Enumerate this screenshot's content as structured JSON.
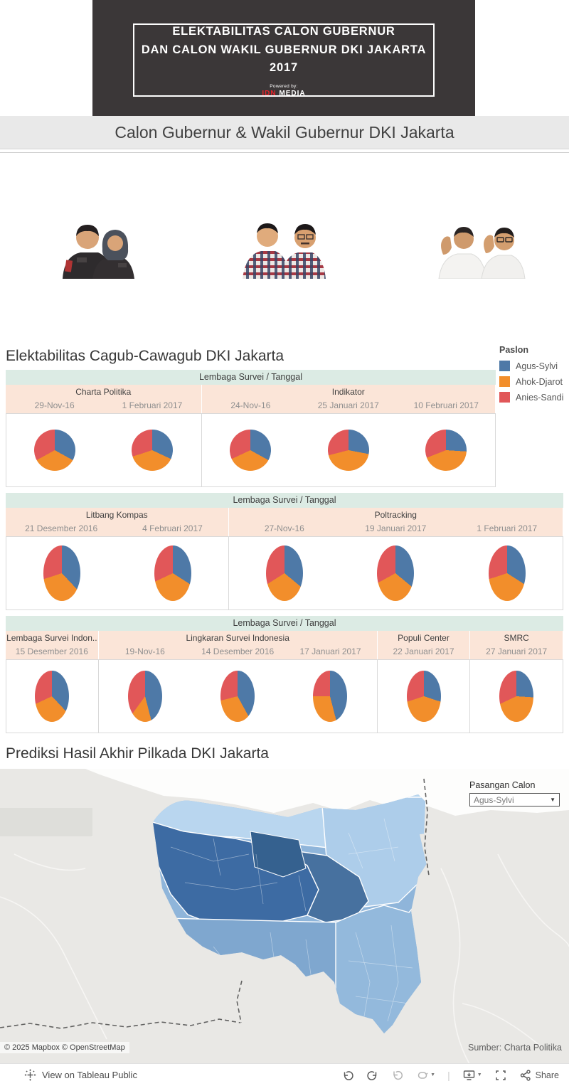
{
  "banner": {
    "title_line1": "ELEKTABILITAS CALON GUBERNUR",
    "title_line2": "DAN CALON WAKIL GUBERNUR DKI JAKARTA 2017",
    "powered_by": "Powered by:",
    "brand_red": "IDN",
    "brand_white": "MEDIA"
  },
  "page_title": "Calon Gubernur & Wakil Gubernur DKI Jakarta",
  "colors": {
    "agus_sylvi": "#4e79a7",
    "ahok_djarot": "#f28e2b",
    "anies_sandi": "#e15759"
  },
  "elektabilitas": {
    "title": "Elektabilitas Cagub-Cawagub DKI Jakarta",
    "legend": {
      "title": "Paslon",
      "items": [
        {
          "label": "Agus-Sylvi",
          "color": "#4e79a7"
        },
        {
          "label": "Ahok-Djarot",
          "color": "#f28e2b"
        },
        {
          "label": "Anies-Sandi",
          "color": "#e15759"
        }
      ]
    },
    "chart_type": "pie",
    "series_names": [
      "Agus-Sylvi",
      "Ahok-Djarot",
      "Anies-Sandi"
    ],
    "groups": [
      {
        "band_label": "Lembaga Survei  /  Tanggal",
        "pie_w": 58,
        "pie_h": 58,
        "surveys": [
          {
            "name": "Charta Politika",
            "polls": [
              {
                "date": "29-Nov-16",
                "values": [
                  33,
                  34,
                  33
                ]
              },
              {
                "date": "1 Februari 2017",
                "values": [
                  32,
                  38,
                  30
                ]
              }
            ]
          },
          {
            "name": "Indikator",
            "polls": [
              {
                "date": "24-Nov-16",
                "values": [
                  33,
                  35,
                  32
                ]
              },
              {
                "date": "25 Januari 2017",
                "values": [
                  28,
                  43,
                  29
                ]
              },
              {
                "date": "10 Februari 2017",
                "values": [
                  26,
                  43,
                  31
                ]
              }
            ]
          }
        ]
      },
      {
        "band_label": "Lembaga Survei  /  Tanggal",
        "pie_w": 52,
        "pie_h": 78,
        "surveys": [
          {
            "name": "Litbang Kompas",
            "polls": [
              {
                "date": "21 Desember 2016",
                "values": [
                  38,
                  32,
                  30
                ]
              },
              {
                "date": "4 Februari 2017",
                "values": [
                  34,
                  34,
                  32
                ]
              }
            ]
          },
          {
            "name": "Poltracking",
            "polls": [
              {
                "date": "27-Nov-16",
                "values": [
                  36,
                  30,
                  34
                ]
              },
              {
                "date": "19 Januari 2017",
                "values": [
                  36,
                  31,
                  33
                ]
              },
              {
                "date": "1 Februari 2017",
                "values": [
                  34,
                  36,
                  30
                ]
              }
            ]
          }
        ]
      },
      {
        "band_label": "Lembaga Survei  /  Tanggal",
        "pie_w": 48,
        "pie_h": 72,
        "surveys": [
          {
            "name": "Lembaga Survei Indon..",
            "polls": [
              {
                "date": "15 Desember 2016",
                "values": [
                  38,
                  30,
                  32
                ]
              }
            ]
          },
          {
            "name": "Lingkaran Survei Indonesia",
            "polls": [
              {
                "date": "19-Nov-16",
                "values": [
                  46,
                  14,
                  40
                ]
              },
              {
                "date": "14 Desember 2016",
                "values": [
                  42,
                  29,
                  29
                ]
              },
              {
                "date": "17 Januari 2017",
                "values": [
                  46,
                  29,
                  25
                ]
              }
            ]
          },
          {
            "name": "Populi Center",
            "polls": [
              {
                "date": "22 Januari 2017",
                "values": [
                  30,
                  40,
                  30
                ]
              }
            ]
          },
          {
            "name": "SMRC",
            "polls": [
              {
                "date": "27 Januari 2017",
                "values": [
                  26,
                  42,
                  32
                ]
              }
            ]
          }
        ]
      }
    ]
  },
  "prediksi": {
    "title": "Prediksi Hasil Akhir Pilkada DKI Jakarta",
    "filter_label": "Pasangan Calon",
    "filter_value": "Agus-Sylvi",
    "attribution": "© 2025 Mapbox  © OpenStreetMap",
    "source": "Sumber: Charta Politika"
  },
  "toolbar": {
    "view_on": "View on Tableau Public",
    "share_label": "Share"
  }
}
